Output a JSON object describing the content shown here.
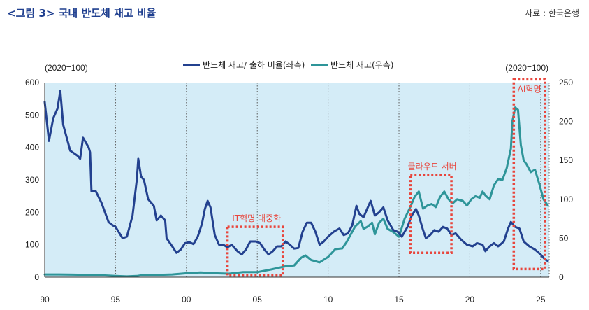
{
  "header": {
    "title": "<그림 3> 국내 반도체 재고 비율",
    "source": "자료 : 한국은행"
  },
  "colors": {
    "ratio_line": "#23418f",
    "inventory_line": "#2e9599",
    "plot_bg": "#d4ecf7",
    "grid": "#5a5a5a",
    "annotation": "#e8453c",
    "title": "#1f3f8f"
  },
  "chart_data": {
    "type": "line",
    "left_axis_unit": "(2020=100)",
    "right_axis_unit": "(2020=100)",
    "left_ylim": [
      0,
      600
    ],
    "right_ylim": [
      0,
      250
    ],
    "left_ticks": [
      "0",
      "100",
      "200",
      "300",
      "400",
      "500",
      "600"
    ],
    "right_ticks": [
      "0",
      "50",
      "100",
      "150",
      "200",
      "250"
    ],
    "xlim": [
      1990,
      2025.6
    ],
    "x_ticks": [
      {
        "x": 1990,
        "label": "90"
      },
      {
        "x": 1995,
        "label": "95"
      },
      {
        "x": 2000,
        "label": "00"
      },
      {
        "x": 2005,
        "label": "05"
      },
      {
        "x": 2010,
        "label": "10"
      },
      {
        "x": 2015,
        "label": "15"
      },
      {
        "x": 2020,
        "label": "20"
      },
      {
        "x": 2025,
        "label": "25"
      }
    ],
    "grid": "vertical dotted",
    "legend_position": "top-center",
    "series": [
      {
        "name": "반도체 재고/ 출하 비율(좌측)",
        "axis": "left",
        "points": [
          [
            1990.0,
            540
          ],
          [
            1990.3,
            420
          ],
          [
            1990.6,
            490
          ],
          [
            1990.9,
            520
          ],
          [
            1991.1,
            575
          ],
          [
            1991.3,
            470
          ],
          [
            1991.8,
            390
          ],
          [
            1992.3,
            375
          ],
          [
            1992.5,
            365
          ],
          [
            1992.7,
            430
          ],
          [
            1993.1,
            400
          ],
          [
            1993.2,
            385
          ],
          [
            1993.3,
            265
          ],
          [
            1993.6,
            265
          ],
          [
            1994.0,
            230
          ],
          [
            1994.5,
            170
          ],
          [
            1994.8,
            160
          ],
          [
            1995.0,
            155
          ],
          [
            1995.5,
            120
          ],
          [
            1995.8,
            125
          ],
          [
            1996.2,
            190
          ],
          [
            1996.5,
            300
          ],
          [
            1996.6,
            365
          ],
          [
            1996.8,
            310
          ],
          [
            1997.0,
            300
          ],
          [
            1997.3,
            240
          ],
          [
            1997.5,
            230
          ],
          [
            1997.7,
            220
          ],
          [
            1997.9,
            175
          ],
          [
            1998.2,
            190
          ],
          [
            1998.5,
            175
          ],
          [
            1998.6,
            120
          ],
          [
            1999.0,
            95
          ],
          [
            1999.3,
            75
          ],
          [
            1999.6,
            85
          ],
          [
            1999.9,
            105
          ],
          [
            2000.2,
            108
          ],
          [
            2000.5,
            102
          ],
          [
            2000.8,
            125
          ],
          [
            2001.1,
            165
          ],
          [
            2001.3,
            210
          ],
          [
            2001.5,
            235
          ],
          [
            2001.7,
            215
          ],
          [
            2002.0,
            130
          ],
          [
            2002.3,
            100
          ],
          [
            2002.6,
            100
          ],
          [
            2002.9,
            92
          ],
          [
            2003.2,
            100
          ],
          [
            2003.6,
            80
          ],
          [
            2003.9,
            70
          ],
          [
            2004.2,
            85
          ],
          [
            2004.5,
            110
          ],
          [
            2004.9,
            110
          ],
          [
            2005.2,
            105
          ],
          [
            2005.5,
            85
          ],
          [
            2005.8,
            70
          ],
          [
            2006.1,
            80
          ],
          [
            2006.4,
            95
          ],
          [
            2006.7,
            95
          ],
          [
            2007.0,
            110
          ],
          [
            2007.3,
            100
          ],
          [
            2007.6,
            88
          ],
          [
            2007.9,
            90
          ],
          [
            2008.2,
            140
          ],
          [
            2008.5,
            168
          ],
          [
            2008.8,
            168
          ],
          [
            2009.1,
            140
          ],
          [
            2009.4,
            100
          ],
          [
            2009.7,
            110
          ],
          [
            2010.0,
            125
          ],
          [
            2010.4,
            140
          ],
          [
            2010.8,
            150
          ],
          [
            2011.1,
            130
          ],
          [
            2011.4,
            135
          ],
          [
            2011.7,
            160
          ],
          [
            2012.0,
            220
          ],
          [
            2012.2,
            195
          ],
          [
            2012.5,
            185
          ],
          [
            2012.8,
            215
          ],
          [
            2013.0,
            235
          ],
          [
            2013.3,
            190
          ],
          [
            2013.6,
            200
          ],
          [
            2013.9,
            215
          ],
          [
            2014.2,
            175
          ],
          [
            2014.6,
            145
          ],
          [
            2014.9,
            140
          ],
          [
            2015.2,
            125
          ],
          [
            2015.6,
            155
          ],
          [
            2015.9,
            190
          ],
          [
            2016.2,
            210
          ],
          [
            2016.4,
            190
          ],
          [
            2016.7,
            145
          ],
          [
            2016.9,
            120
          ],
          [
            2017.2,
            130
          ],
          [
            2017.5,
            145
          ],
          [
            2017.8,
            140
          ],
          [
            2018.1,
            155
          ],
          [
            2018.4,
            150
          ],
          [
            2018.7,
            130
          ],
          [
            2019.0,
            135
          ],
          [
            2019.4,
            115
          ],
          [
            2019.8,
            100
          ],
          [
            2020.2,
            95
          ],
          [
            2020.5,
            105
          ],
          [
            2020.9,
            100
          ],
          [
            2021.1,
            80
          ],
          [
            2021.4,
            95
          ],
          [
            2021.7,
            105
          ],
          [
            2022.0,
            95
          ],
          [
            2022.4,
            110
          ],
          [
            2022.7,
            150
          ],
          [
            2022.9,
            170
          ],
          [
            2023.2,
            155
          ],
          [
            2023.5,
            150
          ],
          [
            2023.8,
            110
          ],
          [
            2024.2,
            95
          ],
          [
            2024.6,
            85
          ],
          [
            2025.0,
            70
          ],
          [
            2025.3,
            55
          ],
          [
            2025.5,
            50
          ]
        ]
      },
      {
        "name": "반도체 재고(우측)",
        "axis": "right",
        "points": [
          [
            1990.0,
            3.5
          ],
          [
            1991.0,
            3.5
          ],
          [
            1992.0,
            3.2
          ],
          [
            1993.0,
            3.0
          ],
          [
            1994.0,
            2.5
          ],
          [
            1995.0,
            1.5
          ],
          [
            1995.8,
            1.0
          ],
          [
            1996.5,
            1.5
          ],
          [
            1997.0,
            3.0
          ],
          [
            1998.0,
            3.0
          ],
          [
            1999.0,
            3.5
          ],
          [
            2000.0,
            5.0
          ],
          [
            2001.0,
            6.0
          ],
          [
            2002.0,
            5.0
          ],
          [
            2003.0,
            4.5
          ],
          [
            2004.0,
            6.5
          ],
          [
            2005.0,
            6.5
          ],
          [
            2006.0,
            10.0
          ],
          [
            2007.0,
            14.0
          ],
          [
            2007.6,
            15.0
          ],
          [
            2008.1,
            25.0
          ],
          [
            2008.4,
            28.0
          ],
          [
            2008.8,
            22.0
          ],
          [
            2009.4,
            19.0
          ],
          [
            2010.0,
            26.0
          ],
          [
            2010.5,
            36.0
          ],
          [
            2011.0,
            37.0
          ],
          [
            2011.3,
            45.0
          ],
          [
            2011.6,
            55.0
          ],
          [
            2011.9,
            65.0
          ],
          [
            2012.3,
            72.0
          ],
          [
            2012.5,
            62.0
          ],
          [
            2012.8,
            65.0
          ],
          [
            2013.1,
            70.0
          ],
          [
            2013.3,
            55.0
          ],
          [
            2013.6,
            70.0
          ],
          [
            2013.9,
            75.0
          ],
          [
            2014.2,
            62.0
          ],
          [
            2014.6,
            58.0
          ],
          [
            2015.0,
            52.0
          ],
          [
            2015.4,
            75.0
          ],
          [
            2015.8,
            90.0
          ],
          [
            2016.1,
            103.0
          ],
          [
            2016.4,
            110.0
          ],
          [
            2016.7,
            88.0
          ],
          [
            2017.0,
            92.0
          ],
          [
            2017.3,
            94.0
          ],
          [
            2017.6,
            90.0
          ],
          [
            2017.9,
            103.0
          ],
          [
            2018.2,
            110.0
          ],
          [
            2018.5,
            100.0
          ],
          [
            2018.8,
            95.0
          ],
          [
            2019.1,
            100.0
          ],
          [
            2019.5,
            98.0
          ],
          [
            2019.8,
            92.0
          ],
          [
            2020.1,
            100.0
          ],
          [
            2020.4,
            104.0
          ],
          [
            2020.7,
            102.0
          ],
          [
            2020.9,
            110.0
          ],
          [
            2021.1,
            105.0
          ],
          [
            2021.4,
            100.0
          ],
          [
            2021.7,
            118.0
          ],
          [
            2022.0,
            126.0
          ],
          [
            2022.3,
            125.0
          ],
          [
            2022.6,
            140.0
          ],
          [
            2022.9,
            165.0
          ],
          [
            2023.0,
            200.0
          ],
          [
            2023.2,
            218.0
          ],
          [
            2023.4,
            215.0
          ],
          [
            2023.6,
            170.0
          ],
          [
            2023.8,
            150.0
          ],
          [
            2024.0,
            145.0
          ],
          [
            2024.3,
            135.0
          ],
          [
            2024.6,
            138.0
          ],
          [
            2024.9,
            120.0
          ],
          [
            2025.2,
            100.0
          ],
          [
            2025.5,
            92.0
          ]
        ]
      }
    ],
    "annotations": [
      {
        "label": "IT혁명 대중화",
        "x0": 2002.9,
        "x1": 2006.8,
        "y0_left": 5,
        "y1_left": 155
      },
      {
        "label": "클라우드 서버",
        "x0": 2015.8,
        "x1": 2018.7,
        "y0_left": 75,
        "y1_left": 315
      },
      {
        "label": "AI혁명",
        "x0": 2023.1,
        "x1": 2025.3,
        "y0_left": 25,
        "y1_left": 610
      }
    ]
  }
}
